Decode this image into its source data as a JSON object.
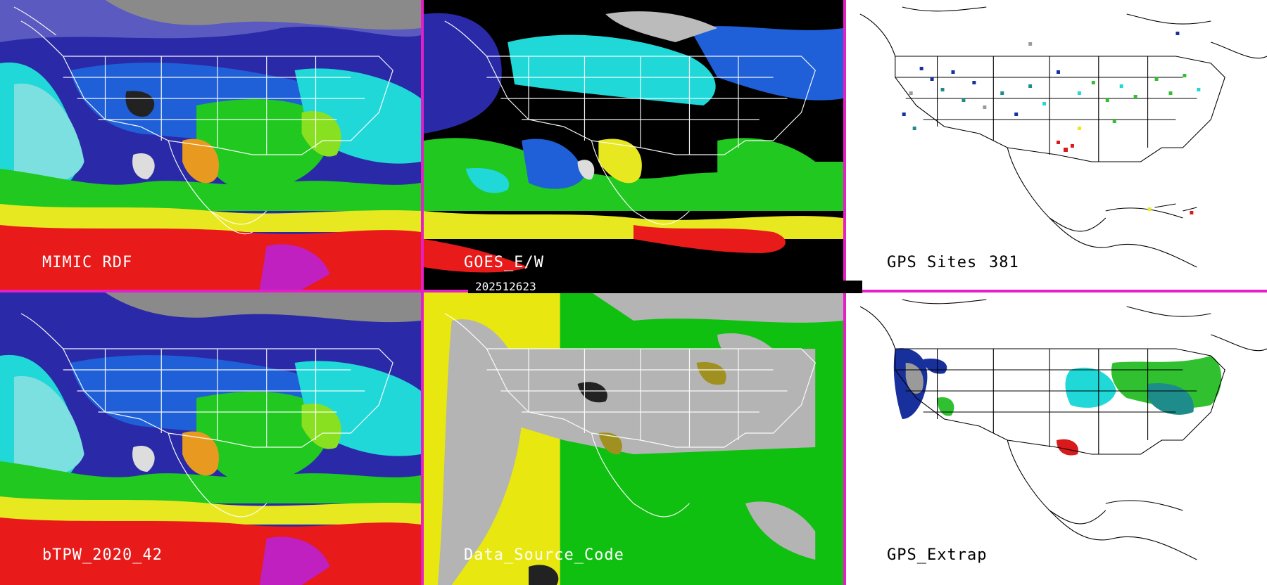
{
  "colors": {
    "divider": "#e61ec8",
    "tpw_scale": [
      "#2a2aa8",
      "#1f60d8",
      "#20d8d8",
      "#7de0e0",
      "#20c820",
      "#88e020",
      "#e8e820",
      "#e89a20",
      "#e81a1a",
      "#c020c0"
    ],
    "source_codes": [
      "#b4b4b4",
      "#e8e810",
      "#10c010",
      "#a09020"
    ],
    "gps_sites": [
      "#18309c",
      "#1f8c8c",
      "#20d8d8",
      "#30c030",
      "#e8e820",
      "#d81a1a",
      "#9a9a9a"
    ]
  },
  "panels": [
    {
      "id": "mimic",
      "label": "MIMIC RDF",
      "type": "tpw-field"
    },
    {
      "id": "goes",
      "label": "GOES_E/W",
      "type": "tpw-field-sparse"
    },
    {
      "id": "gps-sites",
      "label": "GPS Sites",
      "count": "381",
      "type": "site-map"
    },
    {
      "id": "btpw",
      "label": "bTPW_2020_42",
      "type": "tpw-field"
    },
    {
      "id": "source",
      "label": "Data_Source_Code",
      "type": "source-map"
    },
    {
      "id": "gps-extrap",
      "label": "GPS_Extrap",
      "type": "extrap-map"
    }
  ],
  "timestamp": "202512623"
}
